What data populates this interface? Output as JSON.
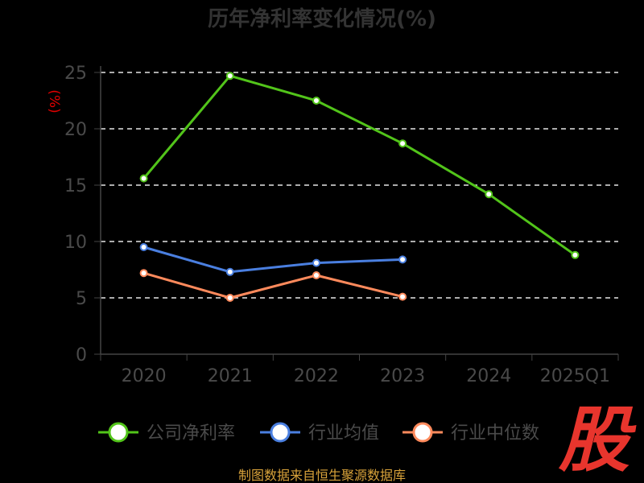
{
  "chart_data": {
    "type": "line",
    "title": "历年净利率变化情况(%)",
    "ylabel": "(%)",
    "categories": [
      "2020",
      "2021",
      "2022",
      "2023",
      "2024",
      "2025Q1"
    ],
    "ylim": [
      0,
      25
    ],
    "yticks": [
      0,
      5,
      10,
      15,
      20,
      25
    ],
    "grid": true,
    "legend_position": "bottom",
    "series": [
      {
        "name": "公司净利率",
        "color": "#52c41a",
        "values": [
          15.6,
          24.7,
          22.5,
          18.7,
          14.2,
          8.8
        ]
      },
      {
        "name": "行业均值",
        "color": "#4a7fe0",
        "values": [
          9.5,
          7.3,
          8.1,
          8.4,
          null,
          null
        ]
      },
      {
        "name": "行业中位数",
        "color": "#ff8a5c",
        "values": [
          7.2,
          5.0,
          7.0,
          5.1,
          null,
          null
        ]
      }
    ]
  },
  "watermark": {
    "text": "股",
    "color": "#e8352d"
  },
  "source": "制图数据来自恒生聚源数据库"
}
